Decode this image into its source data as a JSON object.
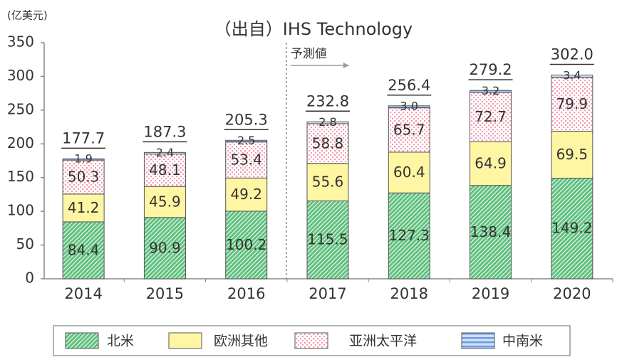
{
  "chart_data": {
    "type": "stacked_bar",
    "title": "（出自）IHS Technology",
    "unit_label": "(亿美元)",
    "forecast_label": "予測値",
    "categories": [
      "2014",
      "2015",
      "2016",
      "2017",
      "2018",
      "2019",
      "2020"
    ],
    "series": [
      {
        "name": "北米",
        "color": "#5fbf7e",
        "pattern": "hatch",
        "values": [
          84.4,
          90.9,
          100.2,
          115.5,
          127.3,
          138.4,
          149.2
        ]
      },
      {
        "name": "欧洲其他",
        "color": "#fff6a3",
        "pattern": "solid",
        "values": [
          41.2,
          45.9,
          49.2,
          55.6,
          60.4,
          64.9,
          69.5
        ]
      },
      {
        "name": "亚洲太平洋",
        "color": "#f29aae",
        "pattern": "dots",
        "values": [
          50.3,
          48.1,
          53.4,
          58.8,
          65.7,
          72.7,
          79.9
        ]
      },
      {
        "name": "中南米",
        "color": "#6f9be0",
        "pattern": "hlines",
        "values": [
          1.9,
          2.4,
          2.5,
          2.8,
          3.0,
          3.2,
          3.4
        ],
        "value_labels": [
          "1.9",
          "2.4",
          "2.5",
          "2.8",
          "3.0",
          "3.2",
          "3.4"
        ]
      }
    ],
    "totals": {
      "values": [
        177.7,
        187.3,
        205.3,
        232.8,
        256.4,
        279.2,
        302.0
      ],
      "value_labels": [
        "177.7",
        "187.3",
        "205.3",
        "232.8",
        "256.4",
        "279.2",
        "302.0"
      ]
    },
    "ylim": [
      0,
      350
    ],
    "yticks": [
      0,
      50,
      100,
      150,
      200,
      250,
      300,
      350
    ]
  }
}
